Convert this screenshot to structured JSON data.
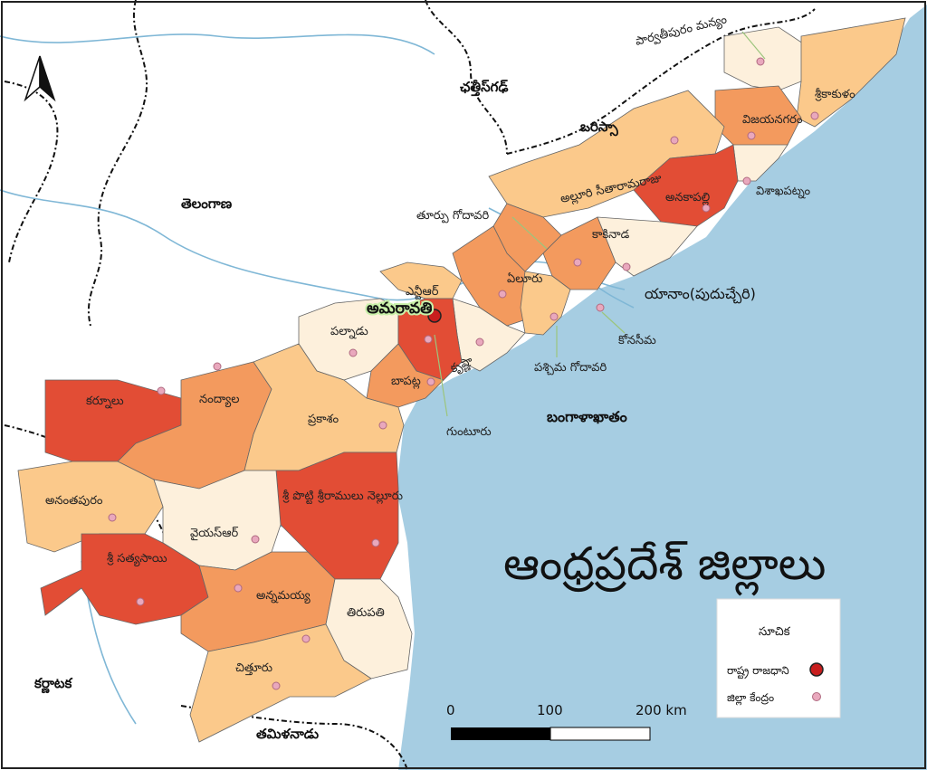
{
  "title": "ఆంధ్రప్రదేశ్ జిల్లాలు",
  "colors": {
    "sea": "#a6cde2",
    "land": "#ffffff",
    "level1": "#fdf0dc",
    "level2": "#fbc98b",
    "level3": "#f39a5e",
    "level4": "#e24d35",
    "capital_marker": "#c81e1e",
    "district_hq_marker": "#e9a8bd",
    "river": "#7fb7d6"
  },
  "north_arrow_icon": "north-arrow-icon",
  "capital": {
    "name": "అమరావతి"
  },
  "neighbours": [
    "ఛత్తీస్‌గఢ్",
    "ఒరిస్సా",
    "తెలంగాణ",
    "కర్ణాటక",
    "తమిళనాడు"
  ],
  "sea": "బంగాళాఖాతం",
  "yanam": "యానాం(పుదుచ్చేరి)",
  "districts": [
    "పార్వతీపురం మన్యం",
    "శ్రీకాకుళం",
    "విజయనగరం",
    "విశాఖపట్నం",
    "అల్లూరి సీతారామరాజు",
    "అనకాపల్లి",
    "తూర్పు గోదావరి",
    "కాకినాడ",
    "ఏలూరు",
    "ఎన్టీఆర్",
    "కోనసీమ",
    "పశ్చిమ గోదావరి",
    "కృష్ణా",
    "పల్నాడు",
    "బాపట్ల",
    "గుంటూరు",
    "కర్నూలు",
    "నంద్యాల",
    "ప్రకాశం",
    "అనంతపురం",
    "శ్రీ పొట్టి శ్రీరాములు నెల్లూరు",
    "వైయస్ఆర్",
    "శ్రీ సత్యసాయి",
    "అన్నమయ్య",
    "తిరుపతి",
    "చిత్తూరు"
  ],
  "legend": {
    "title": "సూచిక",
    "items": [
      {
        "label": "రాష్ట్ర రాజధాని",
        "icon": "capital-marker-icon"
      },
      {
        "label": "జిల్లా కేంద్రం",
        "icon": "district-hq-icon"
      }
    ]
  },
  "scale_bar": {
    "labels": [
      "0",
      "100",
      "200 km"
    ]
  }
}
